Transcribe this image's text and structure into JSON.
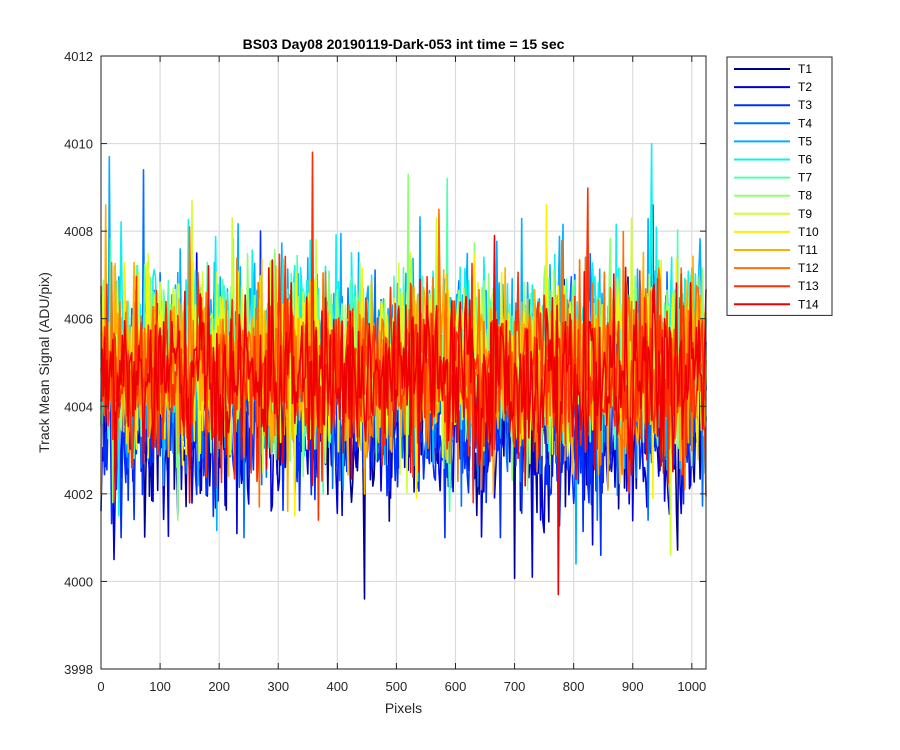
{
  "chart_data": {
    "type": "line",
    "title": "BS03 Day08 20190119-Dark-053 int time = 15 sec",
    "xlabel": "Pixels",
    "ylabel": "Track Mean Signal (ADU/pix)",
    "xlim": [
      0,
      1024
    ],
    "ylim": [
      3998,
      4012
    ],
    "xticks": [
      0,
      100,
      200,
      300,
      400,
      500,
      600,
      700,
      800,
      900,
      1000
    ],
    "yticks": [
      3998,
      4000,
      4002,
      4004,
      4006,
      4008,
      4010,
      4012
    ],
    "grid": true,
    "legend_position": "outside-top-right",
    "series": [
      {
        "name": "T1",
        "color": "#00008F",
        "mean": 4003.9,
        "noise": 1.1,
        "min": 3999.6,
        "max": 4008.6
      },
      {
        "name": "T2",
        "color": "#0000D9",
        "mean": 4003.4,
        "noise": 0.9,
        "min": 4000.1,
        "max": 4007.5
      },
      {
        "name": "T3",
        "color": "#0030FF",
        "mean": 4003.5,
        "noise": 0.9,
        "min": 4000.6,
        "max": 4008.0
      },
      {
        "name": "T4",
        "color": "#0070FF",
        "mean": 4004.6,
        "noise": 1.1,
        "min": 4001.0,
        "max": 4009.4
      },
      {
        "name": "T5",
        "color": "#00B0FF",
        "mean": 4005.3,
        "noise": 1.1,
        "min": 4000.4,
        "max": 4009.7
      },
      {
        "name": "T6",
        "color": "#10F0EF",
        "mean": 4005.3,
        "noise": 1.0,
        "min": 4001.5,
        "max": 4010.0
      },
      {
        "name": "T7",
        "color": "#50FFAF",
        "mean": 4005.2,
        "noise": 1.0,
        "min": 4001.6,
        "max": 4009.2
      },
      {
        "name": "T8",
        "color": "#90FF6F",
        "mean": 4005.1,
        "noise": 1.0,
        "min": 4001.4,
        "max": 4009.3
      },
      {
        "name": "T9",
        "color": "#D0FF2F",
        "mean": 4005.0,
        "noise": 1.0,
        "min": 4000.6,
        "max": 4008.7
      },
      {
        "name": "T10",
        "color": "#FFEF00",
        "mean": 4004.9,
        "noise": 1.0,
        "min": 4001.5,
        "max": 4008.6
      },
      {
        "name": "T11",
        "color": "#FFAF00",
        "mean": 4004.8,
        "noise": 1.0,
        "min": 4001.6,
        "max": 4008.6
      },
      {
        "name": "T12",
        "color": "#FF7000",
        "mean": 4004.8,
        "noise": 1.0,
        "min": 4001.7,
        "max": 4008.5
      },
      {
        "name": "T13",
        "color": "#FF3000",
        "mean": 4004.7,
        "noise": 1.0,
        "min": 4001.4,
        "max": 4009.8
      },
      {
        "name": "T14",
        "color": "#EF0000",
        "mean": 4004.6,
        "noise": 1.0,
        "min": 3999.7,
        "max": 4007.9
      }
    ]
  }
}
